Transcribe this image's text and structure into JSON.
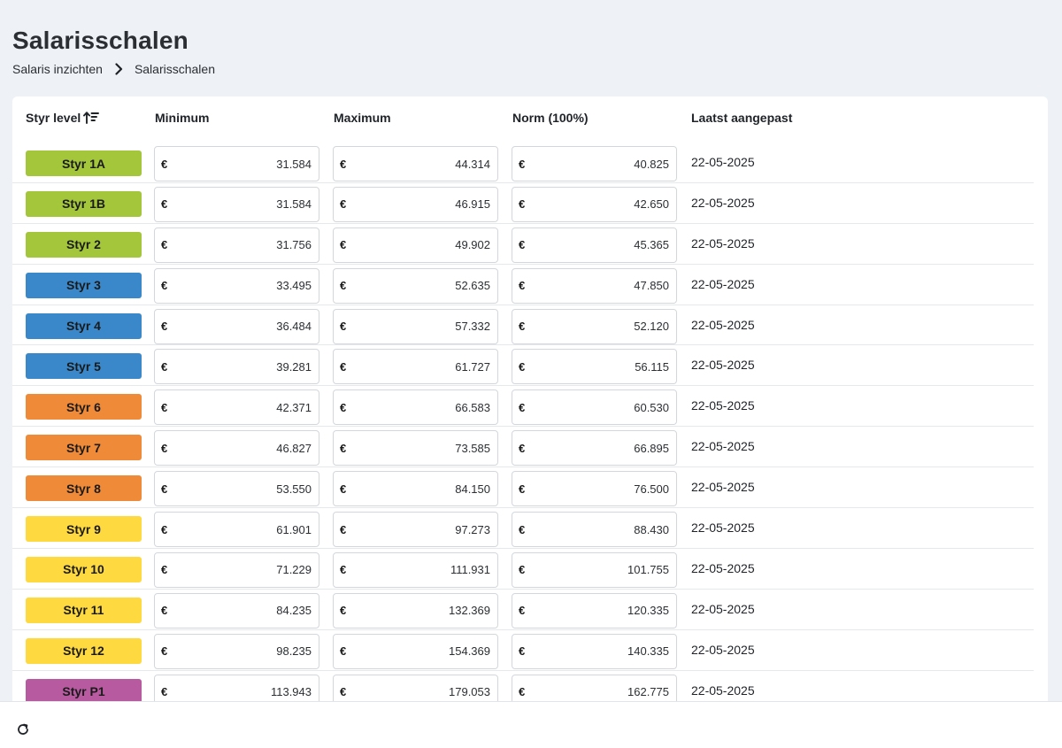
{
  "header": {
    "title": "Salarisschalen",
    "breadcrumb": {
      "parent": "Salaris inzichten",
      "current": "Salarisschalen"
    }
  },
  "table": {
    "columns": {
      "level": "Styr level",
      "minimum": "Minimum",
      "maximum": "Maximum",
      "norm": "Norm (100%)",
      "updated": "Laatst aangepast"
    },
    "currency": "€",
    "rows": [
      {
        "level": "Styr 1A",
        "color": "#a3c63b",
        "min": "31.584",
        "max": "44.314",
        "norm": "40.825",
        "updated": "22-05-2025"
      },
      {
        "level": "Styr 1B",
        "color": "#a3c63b",
        "min": "31.584",
        "max": "46.915",
        "norm": "42.650",
        "updated": "22-05-2025"
      },
      {
        "level": "Styr 2",
        "color": "#a3c63b",
        "min": "31.756",
        "max": "49.902",
        "norm": "45.365",
        "updated": "22-05-2025"
      },
      {
        "level": "Styr 3",
        "color": "#3a88c9",
        "min": "33.495",
        "max": "52.635",
        "norm": "47.850",
        "updated": "22-05-2025"
      },
      {
        "level": "Styr 4",
        "color": "#3a88c9",
        "min": "36.484",
        "max": "57.332",
        "norm": "52.120",
        "updated": "22-05-2025"
      },
      {
        "level": "Styr 5",
        "color": "#3a88c9",
        "min": "39.281",
        "max": "61.727",
        "norm": "56.115",
        "updated": "22-05-2025"
      },
      {
        "level": "Styr 6",
        "color": "#ef8b38",
        "min": "42.371",
        "max": "66.583",
        "norm": "60.530",
        "updated": "22-05-2025"
      },
      {
        "level": "Styr 7",
        "color": "#ef8b38",
        "min": "46.827",
        "max": "73.585",
        "norm": "66.895",
        "updated": "22-05-2025"
      },
      {
        "level": "Styr 8",
        "color": "#ef8b38",
        "min": "53.550",
        "max": "84.150",
        "norm": "76.500",
        "updated": "22-05-2025"
      },
      {
        "level": "Styr 9",
        "color": "#fed93f",
        "min": "61.901",
        "max": "97.273",
        "norm": "88.430",
        "updated": "22-05-2025"
      },
      {
        "level": "Styr 10",
        "color": "#fed93f",
        "min": "71.229",
        "max": "111.931",
        "norm": "101.755",
        "updated": "22-05-2025"
      },
      {
        "level": "Styr 11",
        "color": "#fed93f",
        "min": "84.235",
        "max": "132.369",
        "norm": "120.335",
        "updated": "22-05-2025"
      },
      {
        "level": "Styr 12",
        "color": "#fed93f",
        "min": "98.235",
        "max": "154.369",
        "norm": "140.335",
        "updated": "22-05-2025"
      },
      {
        "level": "Styr P1",
        "color": "#b85aa0",
        "min": "113.943",
        "max": "179.053",
        "norm": "162.775",
        "updated": "22-05-2025"
      }
    ]
  },
  "icons": {
    "breadcrumb_separator": "chevron-right-icon",
    "sort": "sort-ascending-icon",
    "refresh": "refresh-icon"
  }
}
